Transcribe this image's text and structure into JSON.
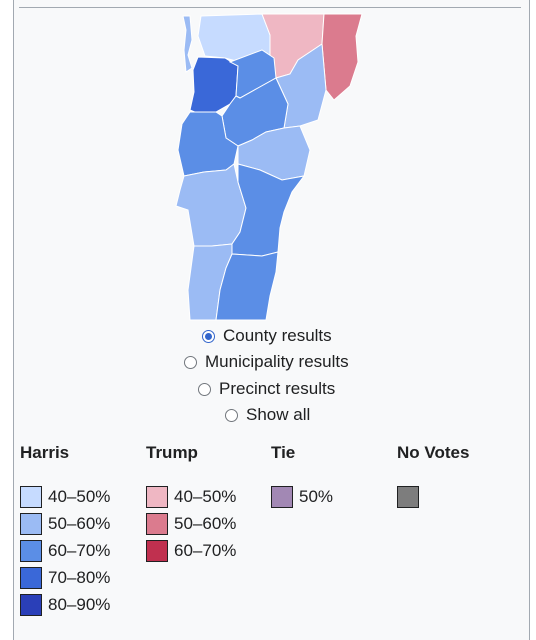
{
  "options": [
    {
      "label": "County results",
      "checked": true
    },
    {
      "label": "Municipality results",
      "checked": false
    },
    {
      "label": "Precinct results",
      "checked": false
    },
    {
      "label": "Show all",
      "checked": false
    }
  ],
  "legend": {
    "harris": {
      "title": "Harris",
      "items": [
        {
          "label": "40–50%",
          "color": "#c6dbff"
        },
        {
          "label": "50–60%",
          "color": "#9bbbf4"
        },
        {
          "label": "60–70%",
          "color": "#5b8ee6"
        },
        {
          "label": "70–80%",
          "color": "#3a68d8"
        },
        {
          "label": "80–90%",
          "color": "#2a3fb8"
        }
      ]
    },
    "trump": {
      "title": "Trump",
      "items": [
        {
          "label": "40–50%",
          "color": "#efb7c3"
        },
        {
          "label": "50–60%",
          "color": "#db7b8e"
        },
        {
          "label": "60–70%",
          "color": "#c0304f"
        }
      ]
    },
    "tie": {
      "title": "Tie",
      "items": [
        {
          "label": "50%",
          "color": "#a288b4"
        }
      ]
    },
    "novotes": {
      "title": "No Votes",
      "color": "#7d7d7d"
    }
  },
  "map_colors": {
    "harris_40_50": "#c6dbff",
    "harris_50_60": "#9bbbf4",
    "harris_60_70": "#5b8ee6",
    "harris_70_80": "#3a68d8",
    "trump_40_50": "#efb7c3",
    "trump_50_60": "#db7b8e"
  }
}
